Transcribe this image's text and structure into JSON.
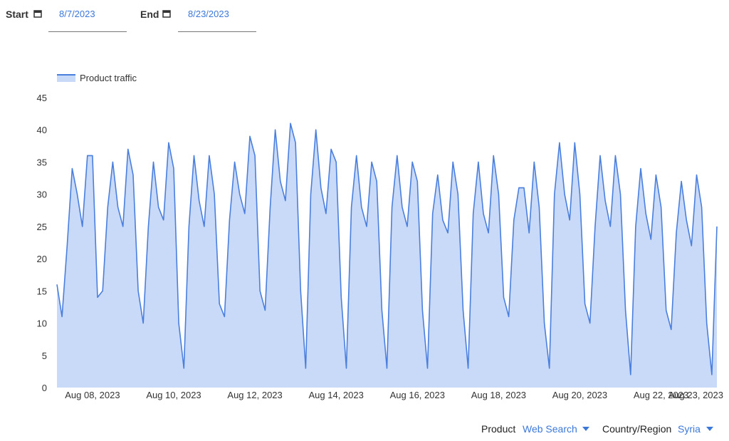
{
  "controls": {
    "start_label": "Start",
    "start_value": "8/7/2023",
    "end_label": "End",
    "end_value": "8/23/2023"
  },
  "filters": {
    "product_label": "Product",
    "product_value": "Web Search",
    "region_label": "Country/Region",
    "region_value": "Syria"
  },
  "chart_data": {
    "type": "area",
    "categories": [
      null,
      null,
      null,
      null,
      null,
      null,
      null,
      "Aug 08, 2023",
      null,
      null,
      null,
      null,
      null,
      null,
      null,
      null,
      null,
      null,
      null,
      null,
      null,
      null,
      null,
      "Aug 10, 2023",
      null,
      null,
      null,
      null,
      null,
      null,
      null,
      null,
      null,
      null,
      null,
      null,
      null,
      null,
      null,
      "Aug 12, 2023",
      null,
      null,
      null,
      null,
      null,
      null,
      null,
      null,
      null,
      null,
      null,
      null,
      null,
      null,
      null,
      "Aug 14, 2023",
      null,
      null,
      null,
      null,
      null,
      null,
      null,
      null,
      null,
      null,
      null,
      null,
      null,
      null,
      null,
      "Aug 16, 2023",
      null,
      null,
      null,
      null,
      null,
      null,
      null,
      null,
      null,
      null,
      null,
      null,
      null,
      null,
      null,
      "Aug 18, 2023",
      null,
      null,
      null,
      null,
      null,
      null,
      null,
      null,
      null,
      null,
      null,
      null,
      null,
      null,
      null,
      "Aug 20, 2023",
      null,
      null,
      null,
      null,
      null,
      null,
      null,
      null,
      null,
      null,
      null,
      null,
      null,
      null,
      null,
      "Aug 22, 2023",
      null,
      null,
      null,
      null,
      null,
      null,
      null,
      "Aug 23, 2023",
      null,
      null,
      null
    ],
    "series": [
      {
        "name": "Product traffic",
        "color": "#4a7fde",
        "fill": "#c9daf8",
        "values": [
          16,
          11,
          22,
          34,
          30,
          25,
          36,
          36,
          14,
          15,
          28,
          35,
          28,
          25,
          37,
          33,
          15,
          10,
          25,
          35,
          28,
          26,
          38,
          34,
          10,
          3,
          25,
          36,
          29,
          25,
          36,
          30,
          13,
          11,
          26,
          35,
          30,
          27,
          39,
          36,
          15,
          12,
          28,
          40,
          32,
          29,
          41,
          38,
          15,
          3,
          30,
          40,
          31,
          27,
          37,
          35,
          14,
          3,
          28,
          36,
          28,
          25,
          35,
          32,
          12,
          3,
          28,
          36,
          28,
          25,
          35,
          32,
          12,
          3,
          27,
          33,
          26,
          24,
          35,
          30,
          12,
          3,
          27,
          35,
          27,
          24,
          36,
          30,
          14,
          11,
          26,
          31,
          31,
          24,
          35,
          28,
          10,
          3,
          30,
          38,
          30,
          26,
          38,
          30,
          13,
          10,
          25,
          36,
          29,
          25,
          36,
          30,
          12,
          2,
          25,
          34,
          27,
          23,
          33,
          28,
          12,
          9,
          24,
          32,
          26,
          22,
          33,
          28,
          10,
          2,
          25
        ]
      }
    ],
    "ylim": [
      0,
      45
    ],
    "yticks": [
      0,
      5,
      10,
      15,
      20,
      25,
      30,
      35,
      40,
      45
    ],
    "legend": "top-left"
  }
}
